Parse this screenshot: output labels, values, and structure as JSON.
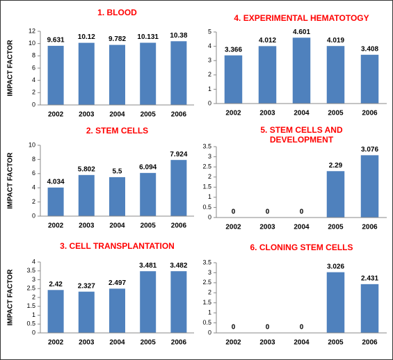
{
  "chart_data": [
    {
      "type": "bar",
      "title": "1. BLOOD",
      "ylabel": "IMPACT FACTOR",
      "categories": [
        "2002",
        "2003",
        "2004",
        "2005",
        "2006"
      ],
      "values": [
        9.631,
        10.12,
        9.782,
        10.131,
        10.38
      ],
      "color": "#4f81bd",
      "ylim": [
        0,
        12
      ],
      "yticks": [
        0,
        2,
        4,
        6,
        8,
        10,
        12
      ]
    },
    {
      "type": "bar",
      "title": "2. STEM CELLS",
      "ylabel": "IMPACT FACTOR",
      "categories": [
        "2002",
        "2003",
        "2004",
        "2005",
        "2006"
      ],
      "values": [
        4.034,
        5.802,
        5.5,
        6.094,
        7.924
      ],
      "color": "#4f81bd",
      "ylim": [
        0,
        10
      ],
      "yticks": [
        0,
        2,
        4,
        6,
        8,
        10
      ]
    },
    {
      "type": "bar",
      "title": "3. CELL TRANSPLANTATION",
      "ylabel": "IMPACT FACTOR",
      "categories": [
        "2002",
        "2003",
        "2004",
        "2005",
        "2006"
      ],
      "values": [
        2.42,
        2.327,
        2.497,
        3.481,
        3.482
      ],
      "color": "#4f81bd",
      "ylim": [
        0,
        4
      ],
      "yticks": [
        0,
        0.5,
        1,
        1.5,
        2,
        2.5,
        3,
        3.5,
        4
      ]
    },
    {
      "type": "bar",
      "title": "4. EXPERIMENTAL HEMATOTOGY",
      "categories": [
        "2002",
        "2003",
        "2004",
        "2005",
        "2006"
      ],
      "values": [
        3.366,
        4.012,
        4.601,
        4.019,
        3.408
      ],
      "color": "#4f81bd",
      "ylim": [
        0,
        5
      ],
      "yticks": [
        0,
        1,
        2,
        3,
        4,
        5
      ]
    },
    {
      "type": "bar",
      "title": "5. STEM CELLS AND DEVELOPMENT",
      "categories": [
        "2002",
        "2003",
        "2004",
        "2005",
        "2006"
      ],
      "values": [
        0,
        0,
        0,
        2.29,
        3.076
      ],
      "color": "#4f81bd",
      "ylim": [
        0,
        3.5
      ],
      "yticks": [
        0,
        0.5,
        1,
        1.5,
        2,
        2.5,
        3,
        3.5
      ]
    },
    {
      "type": "bar",
      "title": "6. CLONING STEM CELLS",
      "categories": [
        "2002",
        "2003",
        "2004",
        "2005",
        "2006"
      ],
      "values": [
        0,
        0,
        0,
        3.026,
        2.431
      ],
      "color": "#4f81bd",
      "ylim": [
        0,
        3.5
      ],
      "yticks": [
        0,
        0.5,
        1,
        1.5,
        2,
        2.5,
        3,
        3.5
      ]
    }
  ]
}
